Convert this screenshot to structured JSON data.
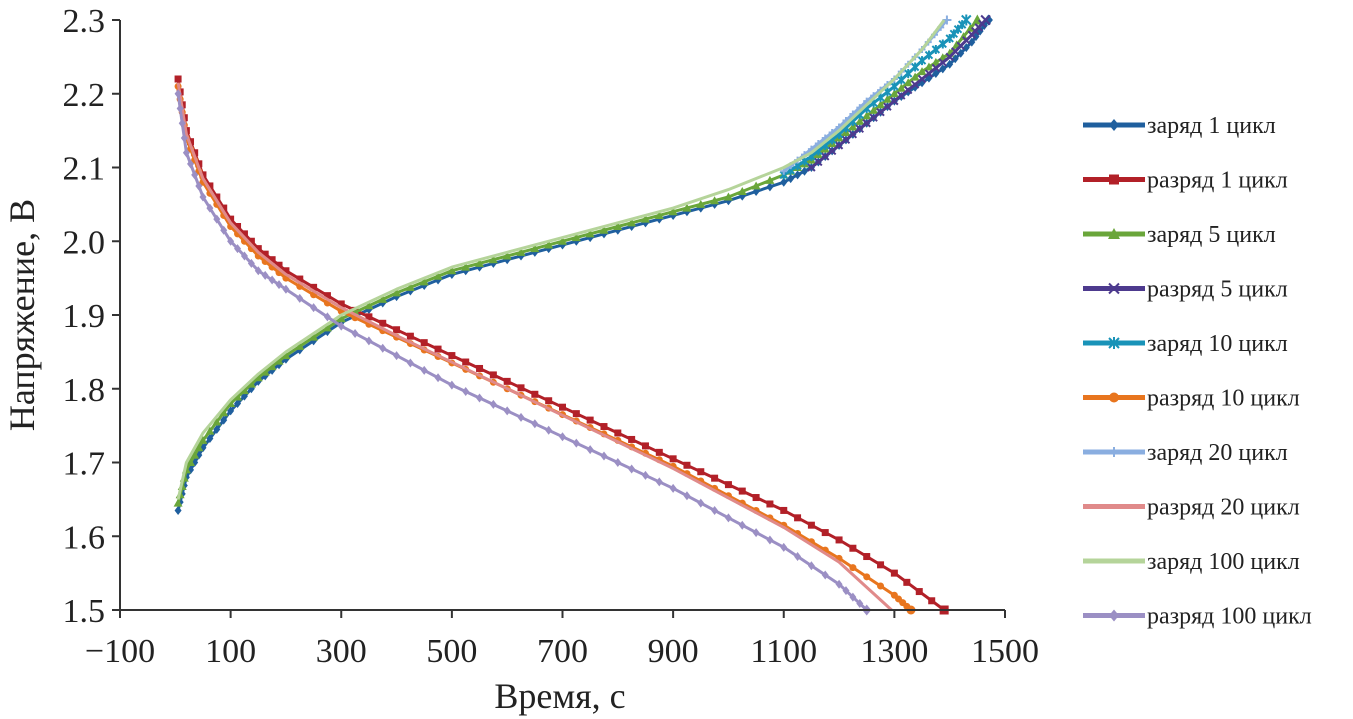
{
  "chart_data": {
    "type": "line",
    "xlabel": "Время, с",
    "ylabel": "Напряжение, В",
    "xlim": [
      -100,
      1500
    ],
    "ylim": [
      1.5,
      2.3
    ],
    "xticks": [
      "−100",
      "100",
      "300",
      "500",
      "700",
      "900",
      "1100",
      "1300",
      "1500"
    ],
    "yticks": [
      "1.5",
      "1.6",
      "1.7",
      "1.8",
      "1.9",
      "2.0",
      "2.1",
      "2.2",
      "2.3"
    ],
    "grid": false,
    "legend_position": "right",
    "series": [
      {
        "name": "заряд 1 цикл",
        "color": "#1f5f9e",
        "marker": "diamond",
        "x": [
          5,
          20,
          50,
          100,
          150,
          200,
          300,
          400,
          500,
          600,
          700,
          800,
          900,
          1000,
          1100,
          1150,
          1200,
          1250,
          1300,
          1350,
          1400,
          1440,
          1470
        ],
        "y": [
          1.635,
          1.68,
          1.72,
          1.77,
          1.81,
          1.84,
          1.89,
          1.925,
          1.955,
          1.975,
          1.995,
          2.015,
          2.035,
          2.055,
          2.08,
          2.1,
          2.13,
          2.16,
          2.19,
          2.215,
          2.24,
          2.27,
          2.3
        ]
      },
      {
        "name": "разряд 1 цикл",
        "color": "#b22028",
        "marker": "square",
        "x": [
          5,
          20,
          50,
          100,
          150,
          200,
          300,
          400,
          500,
          600,
          700,
          800,
          900,
          1000,
          1100,
          1200,
          1300,
          1390
        ],
        "y": [
          2.22,
          2.15,
          2.09,
          2.03,
          1.99,
          1.96,
          1.915,
          1.88,
          1.845,
          1.81,
          1.775,
          1.74,
          1.705,
          1.67,
          1.635,
          1.595,
          1.55,
          1.5
        ]
      },
      {
        "name": "заряд 5 цикл",
        "color": "#6aa63a",
        "marker": "triangle",
        "x": [
          5,
          20,
          50,
          100,
          150,
          200,
          300,
          400,
          500,
          600,
          700,
          800,
          900,
          1000,
          1100,
          1150,
          1200,
          1250,
          1300,
          1350,
          1400,
          1450
        ],
        "y": [
          1.645,
          1.69,
          1.73,
          1.78,
          1.815,
          1.845,
          1.895,
          1.93,
          1.96,
          1.98,
          2.0,
          2.02,
          2.04,
          2.06,
          2.09,
          2.11,
          2.14,
          2.17,
          2.2,
          2.23,
          2.255,
          2.3
        ]
      },
      {
        "name": "разряд 5 цикл",
        "color": "#4d3a8e",
        "marker": "x",
        "x": [
          1150,
          1200,
          1250,
          1300,
          1350,
          1400,
          1440,
          1465
        ],
        "y": [
          2.1,
          2.13,
          2.16,
          2.19,
          2.22,
          2.25,
          2.28,
          2.3
        ]
      },
      {
        "name": "заряд 10 цикл",
        "color": "#1993b8",
        "marker": "star",
        "x": [
          1100,
          1150,
          1200,
          1250,
          1300,
          1350,
          1400,
          1430
        ],
        "y": [
          2.09,
          2.115,
          2.145,
          2.18,
          2.21,
          2.245,
          2.275,
          2.3
        ]
      },
      {
        "name": "разряд 10 цикл",
        "color": "#e8751e",
        "marker": "circle",
        "x": [
          5,
          20,
          50,
          100,
          150,
          200,
          300,
          400,
          500,
          600,
          700,
          800,
          900,
          1000,
          1100,
          1200,
          1300,
          1330
        ],
        "y": [
          2.21,
          2.14,
          2.08,
          2.02,
          1.98,
          1.95,
          1.905,
          1.87,
          1.835,
          1.8,
          1.765,
          1.73,
          1.695,
          1.655,
          1.615,
          1.57,
          1.52,
          1.5
        ]
      },
      {
        "name": "заряд 20 цикл",
        "color": "#8aaee0",
        "marker": "plus",
        "x": [
          1100,
          1150,
          1200,
          1250,
          1300,
          1350,
          1395
        ],
        "y": [
          2.095,
          2.125,
          2.155,
          2.19,
          2.22,
          2.26,
          2.3
        ]
      },
      {
        "name": "разряд 20 цикл",
        "color": "#e08a8a",
        "marker": "line",
        "x": [
          5,
          20,
          50,
          100,
          150,
          200,
          300,
          400,
          500,
          600,
          700,
          800,
          900,
          1000,
          1100,
          1200,
          1295
        ],
        "y": [
          2.215,
          2.145,
          2.085,
          2.025,
          1.985,
          1.955,
          1.91,
          1.872,
          1.836,
          1.8,
          1.764,
          1.728,
          1.692,
          1.652,
          1.612,
          1.565,
          1.5
        ]
      },
      {
        "name": "заряд 100 цикл",
        "color": "#b5d49a",
        "marker": "line",
        "x": [
          5,
          20,
          50,
          100,
          150,
          200,
          300,
          400,
          500,
          600,
          700,
          800,
          900,
          1000,
          1100,
          1150,
          1200,
          1250,
          1300,
          1350,
          1390
        ],
        "y": [
          1.65,
          1.7,
          1.74,
          1.785,
          1.82,
          1.85,
          1.9,
          1.935,
          1.965,
          1.985,
          2.005,
          2.025,
          2.045,
          2.07,
          2.1,
          2.12,
          2.15,
          2.185,
          2.22,
          2.26,
          2.3
        ]
      },
      {
        "name": "разряд 100 цикл",
        "color": "#9b8fc4",
        "marker": "diamond",
        "x": [
          5,
          20,
          50,
          100,
          150,
          200,
          300,
          400,
          500,
          600,
          700,
          800,
          900,
          1000,
          1100,
          1200,
          1250
        ],
        "y": [
          2.2,
          2.12,
          2.06,
          2.0,
          1.96,
          1.935,
          1.885,
          1.845,
          1.805,
          1.77,
          1.735,
          1.7,
          1.665,
          1.625,
          1.585,
          1.535,
          1.5
        ]
      }
    ]
  }
}
